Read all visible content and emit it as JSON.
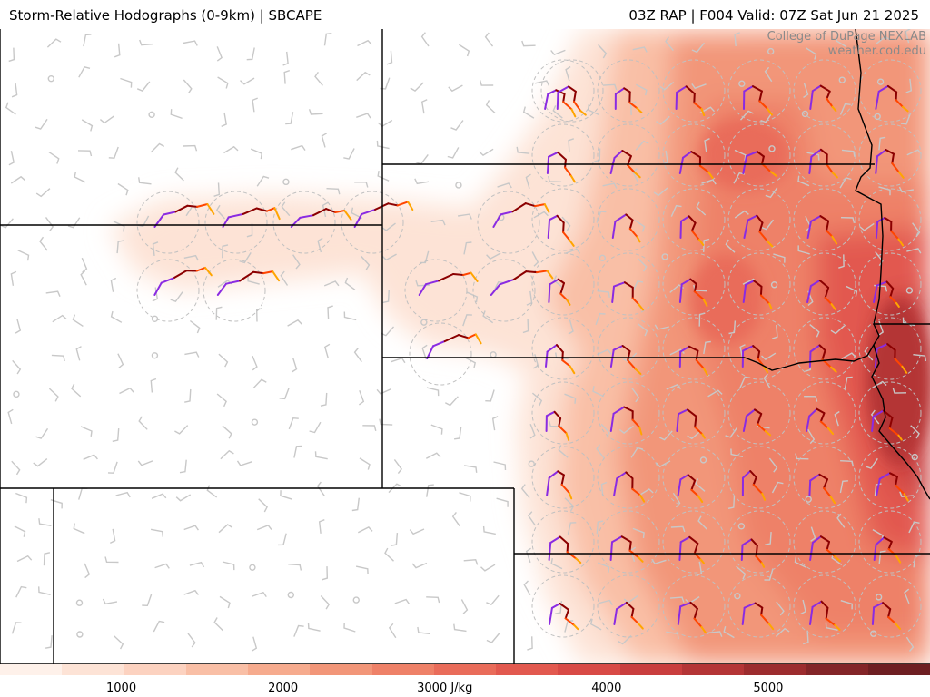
{
  "header": {
    "title_left": "Storm-Relative Hodographs (0-9km) | SBCAPE",
    "title_right": "03Z RAP | F004 Valid: 07Z Sat Jun 21 2025"
  },
  "credit": {
    "line1": "College of DuPage NEXLAB",
    "line2": "weather.cod.edu"
  },
  "colorbar": {
    "colors": [
      "#fef1ea",
      "#fde3d6",
      "#fcd2c0",
      "#f9bfa6",
      "#f6ab8e",
      "#f29679",
      "#ee8168",
      "#e96c5a",
      "#e2594f",
      "#d84a46",
      "#c93e3e",
      "#b43536",
      "#9c2c2e",
      "#832528",
      "#6e1f22"
    ],
    "ticks": [
      {
        "label": "1000",
        "value": 1000
      },
      {
        "label": "2000",
        "value": 2000
      },
      {
        "label": "3000 J/kg",
        "value": 3000
      },
      {
        "label": "4000",
        "value": 4000
      },
      {
        "label": "5000",
        "value": 5000
      }
    ],
    "min": 250,
    "max": 6000
  },
  "legend_colors": {
    "hodo_low": "#8a2be2",
    "hodo_mid1": "#8b0000",
    "hodo_mid2": "#ff4500",
    "hodo_high": "#ffa500",
    "border": "#000000",
    "barb": "#c8c8c8"
  }
}
